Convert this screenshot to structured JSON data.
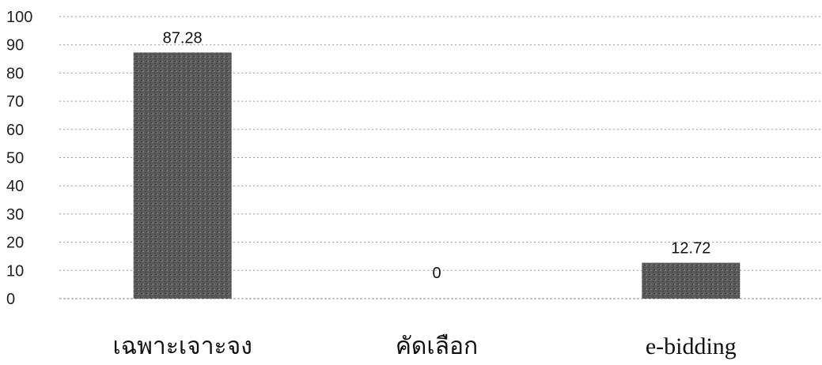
{
  "chart_data": {
    "type": "bar",
    "categories": [
      "เฉพาะเจาะจง",
      "คัดเลือก",
      "e-bidding"
    ],
    "values": [
      87.28,
      0,
      12.72
    ],
    "value_labels": [
      "87.28",
      "0",
      "12.72"
    ],
    "ylim": [
      0,
      100
    ],
    "yticks": [
      "0",
      "10",
      "20",
      "30",
      "40",
      "50",
      "60",
      "70",
      "80",
      "90",
      "100"
    ],
    "grid": true,
    "legend": false,
    "bar_color": "#5a5a5a",
    "title": "",
    "xlabel": "",
    "ylabel": ""
  }
}
